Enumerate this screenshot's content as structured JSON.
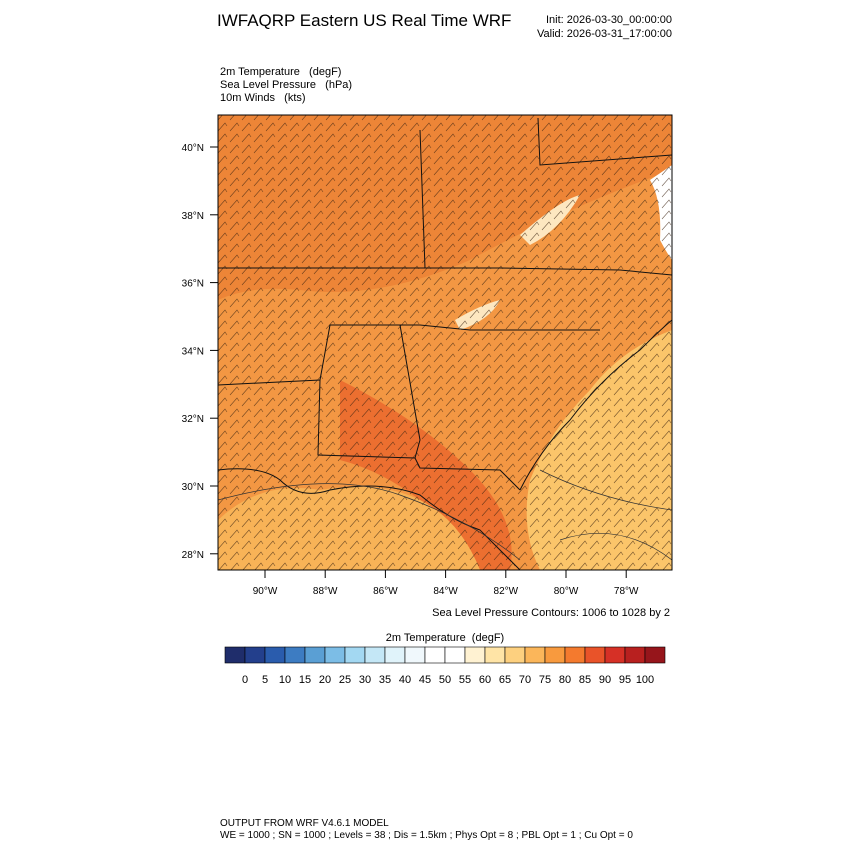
{
  "header": {
    "title": "IWFAQRP Eastern US Real Time WRF",
    "init": "Init: 2026-03-30_00:00:00",
    "valid": "Valid: 2026-03-31_17:00:00"
  },
  "fields": [
    "2m Temperature   (degF)",
    "Sea Level Pressure   (hPa)",
    "10m Winds   (kts)"
  ],
  "map": {
    "lat_labels": [
      "40°N",
      "38°N",
      "36°N",
      "34°N",
      "32°N",
      "30°N",
      "28°N"
    ],
    "lon_labels": [
      "90°W",
      "88°W",
      "86°W",
      "84°W",
      "82°W",
      "80°W",
      "78°W"
    ],
    "contour_note": "Sea Level Pressure Contours: 1006 to 1028 by 2"
  },
  "colorbar": {
    "title": "2m Temperature  (degF)",
    "labels": [
      0,
      5,
      10,
      15,
      20,
      25,
      30,
      35,
      40,
      45,
      50,
      55,
      60,
      65,
      70,
      75,
      80,
      85,
      90,
      95,
      100
    ],
    "colors": [
      "#1f2d6b",
      "#233f8c",
      "#2a5cad",
      "#3d7cc2",
      "#5a9fd4",
      "#7cbde6",
      "#a3d8f2",
      "#c4e7f6",
      "#e0f3fa",
      "#f0f8fc",
      "#ffffff",
      "#ffffff",
      "#fff2d2",
      "#ffe4a6",
      "#fdd07f",
      "#fbb65a",
      "#f89a3e",
      "#f47a2e",
      "#e95329",
      "#d63026",
      "#b8201f",
      "#96151b"
    ]
  },
  "footer": {
    "line1": "OUTPUT FROM WRF V4.6.1 MODEL",
    "line2": "WE = 1000 ; SN = 1000 ; Levels = 38 ; Dis = 1.5km ; Phys Opt = 8 ; PBL Opt = 1 ; Cu Opt = 0"
  }
}
